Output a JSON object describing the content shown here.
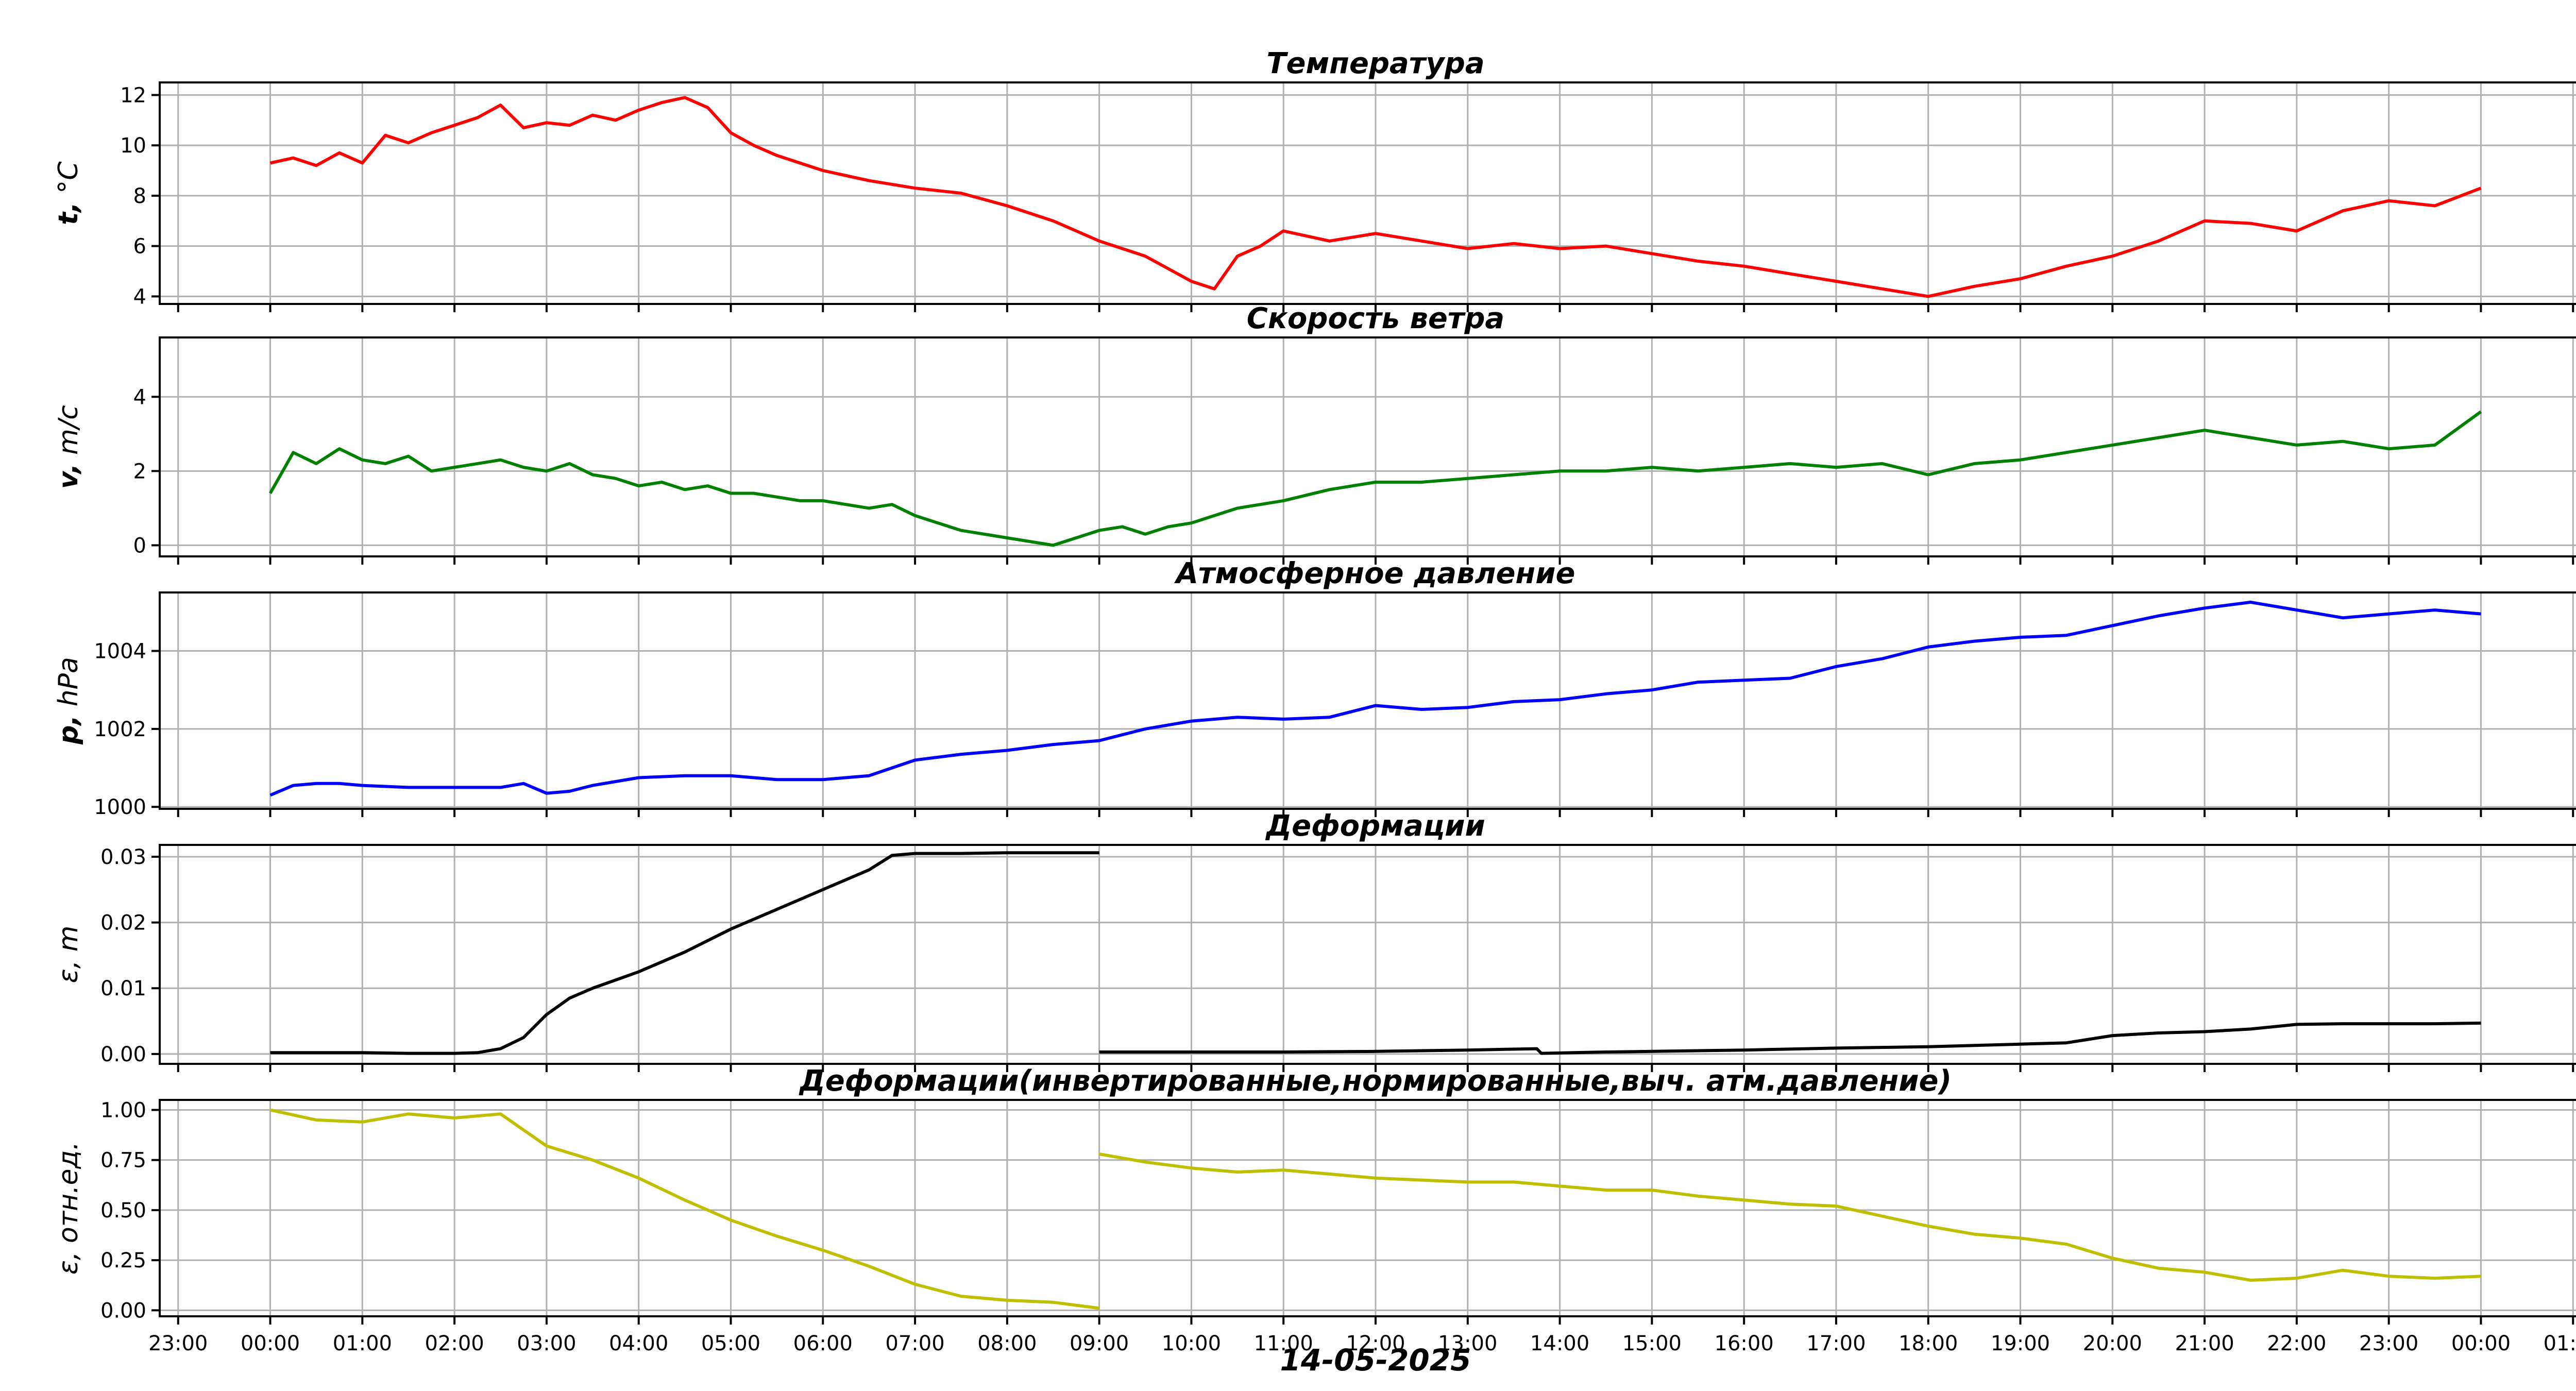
{
  "chart_data": [
    {
      "type": "line",
      "title": "Температура",
      "ylabel_bold": "t,",
      "ylabel_rest": " °C",
      "ylim": [
        3.7,
        12.5
      ],
      "yticks": [
        "4",
        "6",
        "8",
        "10",
        "12"
      ],
      "ytick_values": [
        4,
        6,
        8,
        10,
        12
      ],
      "grid": true,
      "color": "#ff0000",
      "series": [
        {
          "x": [
            0,
            0.25,
            0.5,
            0.75,
            1,
            1.25,
            1.5,
            1.75,
            2,
            2.25,
            2.5,
            2.75,
            3,
            3.25,
            3.5,
            3.75,
            4,
            4.25,
            4.5,
            4.75,
            5,
            5.25,
            5.5,
            5.75,
            6,
            6.5,
            7,
            7.5,
            8,
            8.5,
            9,
            9.5,
            10,
            10.25,
            10.5,
            10.75,
            11,
            11.5,
            12,
            12.5,
            13,
            13.5,
            14,
            14.5,
            15,
            15.5,
            16,
            16.5,
            17,
            17.5,
            18,
            18.5,
            19,
            19.5,
            20,
            20.5,
            21,
            21.5,
            22,
            22.5,
            23,
            23.5,
            24
          ],
          "y": [
            9.3,
            9.5,
            9.2,
            9.7,
            9.3,
            10.4,
            10.1,
            10.5,
            10.8,
            11.1,
            11.6,
            10.7,
            10.9,
            10.8,
            11.2,
            11.0,
            11.4,
            11.7,
            11.9,
            11.5,
            10.5,
            10.0,
            9.6,
            9.3,
            9.0,
            8.6,
            8.3,
            8.1,
            7.6,
            7.0,
            6.2,
            5.6,
            4.6,
            4.3,
            5.6,
            6.0,
            6.6,
            6.2,
            6.5,
            6.2,
            5.9,
            6.1,
            5.9,
            6.0,
            5.7,
            5.4,
            5.2,
            4.9,
            4.6,
            4.3,
            4.0,
            4.4,
            4.7,
            5.2,
            5.6,
            6.2,
            7.0,
            6.9,
            6.6,
            7.4,
            7.8,
            7.6,
            8.3
          ]
        }
      ]
    },
    {
      "type": "line",
      "title": "Скорость ветра",
      "ylabel_bold": "v,",
      "ylabel_rest": " m/c",
      "ylim": [
        -0.3,
        5.6
      ],
      "yticks": [
        "0",
        "2",
        "4"
      ],
      "ytick_values": [
        0,
        2,
        4
      ],
      "grid": true,
      "color": "#008000",
      "series": [
        {
          "x": [
            0,
            0.25,
            0.5,
            0.75,
            1,
            1.25,
            1.5,
            1.75,
            2,
            2.25,
            2.5,
            2.75,
            3,
            3.25,
            3.5,
            3.75,
            4,
            4.25,
            4.5,
            4.75,
            5,
            5.25,
            5.5,
            5.75,
            6,
            6.25,
            6.5,
            6.75,
            7,
            7.5,
            8,
            8.5,
            9,
            9.25,
            9.5,
            9.75,
            10,
            10.5,
            11,
            11.5,
            12,
            12.5,
            13,
            13.5,
            14,
            14.5,
            15,
            15.5,
            16,
            16.5,
            17,
            17.5,
            18,
            18.5,
            19,
            19.5,
            20,
            20.5,
            21,
            21.5,
            22,
            22.5,
            23,
            23.5,
            24
          ],
          "y": [
            1.4,
            2.5,
            2.2,
            2.6,
            2.3,
            2.2,
            2.4,
            2.0,
            2.1,
            2.2,
            2.3,
            2.1,
            2.0,
            2.2,
            1.9,
            1.8,
            1.6,
            1.7,
            1.5,
            1.6,
            1.4,
            1.4,
            1.3,
            1.2,
            1.2,
            1.1,
            1.0,
            1.1,
            0.8,
            0.4,
            0.2,
            0.0,
            0.4,
            0.5,
            0.3,
            0.5,
            0.6,
            1.0,
            1.2,
            1.5,
            1.7,
            1.7,
            1.8,
            1.9,
            2.0,
            2.0,
            2.1,
            2.0,
            2.1,
            2.2,
            2.1,
            2.2,
            1.9,
            2.2,
            2.3,
            2.5,
            2.7,
            2.9,
            3.1,
            2.9,
            2.7,
            2.8,
            2.6,
            2.7,
            3.6
          ]
        }
      ]
    },
    {
      "type": "line",
      "title": "Атмосферное давление",
      "ylabel_bold": "p,",
      "ylabel_rest": " hPa",
      "ylim": [
        999.95,
        1005.5
      ],
      "yticks": [
        "1000",
        "1002",
        "1004"
      ],
      "ytick_values": [
        1000,
        1002,
        1004
      ],
      "grid": true,
      "color": "#0000ff",
      "series": [
        {
          "x": [
            0,
            0.25,
            0.5,
            0.75,
            1,
            1.5,
            2,
            2.5,
            2.75,
            3,
            3.25,
            3.5,
            4,
            4.5,
            5,
            5.5,
            6,
            6.5,
            7,
            7.5,
            8,
            8.5,
            9,
            9.5,
            10,
            10.5,
            11,
            11.5,
            12,
            12.5,
            13,
            13.5,
            14,
            14.5,
            15,
            15.5,
            16,
            16.5,
            17,
            17.5,
            18,
            18.5,
            19,
            19.5,
            20,
            20.5,
            21,
            21.5,
            22,
            22.5,
            23,
            23.5,
            24
          ],
          "y": [
            1000.3,
            1000.55,
            1000.6,
            1000.6,
            1000.55,
            1000.5,
            1000.5,
            1000.5,
            1000.6,
            1000.35,
            1000.4,
            1000.55,
            1000.75,
            1000.8,
            1000.8,
            1000.7,
            1000.7,
            1000.8,
            1001.2,
            1001.35,
            1001.45,
            1001.6,
            1001.7,
            1002.0,
            1002.2,
            1002.3,
            1002.25,
            1002.3,
            1002.6,
            1002.5,
            1002.55,
            1002.7,
            1002.75,
            1002.9,
            1003.0,
            1003.2,
            1003.25,
            1003.3,
            1003.6,
            1003.8,
            1004.1,
            1004.25,
            1004.35,
            1004.4,
            1004.65,
            1004.9,
            1005.1,
            1005.25,
            1005.05,
            1004.85,
            1004.95,
            1005.05,
            1004.95
          ]
        }
      ]
    },
    {
      "type": "line",
      "title": "Деформации",
      "ylabel_greek": "ε,",
      "ylabel_rest": " m",
      "ylim": [
        -0.0015,
        0.0318
      ],
      "yticks": [
        "0.00",
        "0.01",
        "0.02",
        "0.03"
      ],
      "ytick_values": [
        0.0,
        0.01,
        0.02,
        0.03
      ],
      "grid": true,
      "color": "#000000",
      "series": [
        {
          "x": [
            0,
            0.5,
            1,
            1.5,
            2,
            2.25,
            2.5,
            2.75,
            3,
            3.25,
            3.5,
            4,
            4.5,
            5,
            5.5,
            6,
            6.25,
            6.5,
            6.75,
            7,
            7.5,
            8,
            8.5,
            9
          ],
          "y": [
            0.0002,
            0.0002,
            0.0002,
            0.0001,
            0.0001,
            0.0002,
            0.0008,
            0.0025,
            0.006,
            0.0085,
            0.01,
            0.0125,
            0.0155,
            0.019,
            0.022,
            0.025,
            0.0265,
            0.028,
            0.0302,
            0.0305,
            0.0305,
            0.0306,
            0.0306,
            0.0306
          ]
        },
        {
          "x": [
            9,
            10,
            11,
            12,
            13,
            13.75,
            13.8,
            14.5,
            15,
            16,
            17,
            18,
            19,
            19.5,
            20,
            20.5,
            21,
            21.5,
            22,
            22.5,
            23,
            23.5,
            24
          ],
          "y": [
            0.0003,
            0.0003,
            0.0003,
            0.0004,
            0.0006,
            0.0008,
            0.0001,
            0.0003,
            0.0004,
            0.0006,
            0.0009,
            0.0011,
            0.0015,
            0.0017,
            0.0028,
            0.0032,
            0.0034,
            0.0038,
            0.0045,
            0.0046,
            0.0046,
            0.0046,
            0.0047
          ]
        }
      ]
    },
    {
      "type": "line",
      "title": "Деформации(инвертированные,нормированные,выч. атм.давление)",
      "ylabel_greek": "ε,",
      "ylabel_rest": " отн.ед.",
      "ylim": [
        -0.03,
        1.05
      ],
      "yticks": [
        "0.00",
        "0.25",
        "0.50",
        "0.75",
        "1.00"
      ],
      "ytick_values": [
        0.0,
        0.25,
        0.5,
        0.75,
        1.0
      ],
      "grid": true,
      "color": "#bfbf00",
      "series": [
        {
          "x": [
            0,
            0.5,
            1,
            1.5,
            2,
            2.5,
            3,
            3.5,
            4,
            4.5,
            5,
            5.5,
            6,
            6.5,
            7,
            7.5,
            8,
            8.5,
            9
          ],
          "y": [
            1.0,
            0.95,
            0.94,
            0.98,
            0.96,
            0.98,
            0.82,
            0.75,
            0.66,
            0.55,
            0.45,
            0.37,
            0.3,
            0.22,
            0.13,
            0.07,
            0.05,
            0.04,
            0.01
          ]
        },
        {
          "x": [
            9,
            9.5,
            10,
            10.5,
            11,
            11.5,
            12,
            12.5,
            13,
            13.5,
            14,
            14.5,
            15,
            15.5,
            16,
            16.5,
            17,
            17.5,
            18,
            18.5,
            19,
            19.5,
            20,
            20.5,
            21,
            21.5,
            22,
            22.5,
            23,
            23.5,
            24
          ],
          "y": [
            0.78,
            0.74,
            0.71,
            0.69,
            0.7,
            0.68,
            0.66,
            0.65,
            0.64,
            0.64,
            0.62,
            0.6,
            0.6,
            0.57,
            0.55,
            0.53,
            0.52,
            0.47,
            0.42,
            0.38,
            0.36,
            0.33,
            0.26,
            0.21,
            0.19,
            0.15,
            0.16,
            0.2,
            0.17,
            0.16,
            0.17
          ]
        }
      ]
    }
  ],
  "x_axis": {
    "xlim": [
      -1.2,
      25.2
    ],
    "tick_values": [
      -1,
      0,
      1,
      2,
      3,
      4,
      5,
      6,
      7,
      8,
      9,
      10,
      11,
      12,
      13,
      14,
      15,
      16,
      17,
      18,
      19,
      20,
      21,
      22,
      23,
      24,
      25
    ],
    "tick_labels": [
      "23:00",
      "00:00",
      "01:00",
      "02:00",
      "03:00",
      "04:00",
      "05:00",
      "06:00",
      "07:00",
      "08:00",
      "09:00",
      "10:00",
      "11:00",
      "12:00",
      "13:00",
      "14:00",
      "15:00",
      "16:00",
      "17:00",
      "18:00",
      "19:00",
      "20:00",
      "21:00",
      "22:00",
      "23:00",
      "00:00",
      "01:00"
    ],
    "xlabel": "14-05-2025"
  },
  "colors": {
    "grid": "#b0b0b0",
    "axes": "#000000",
    "background": "#ffffff"
  }
}
